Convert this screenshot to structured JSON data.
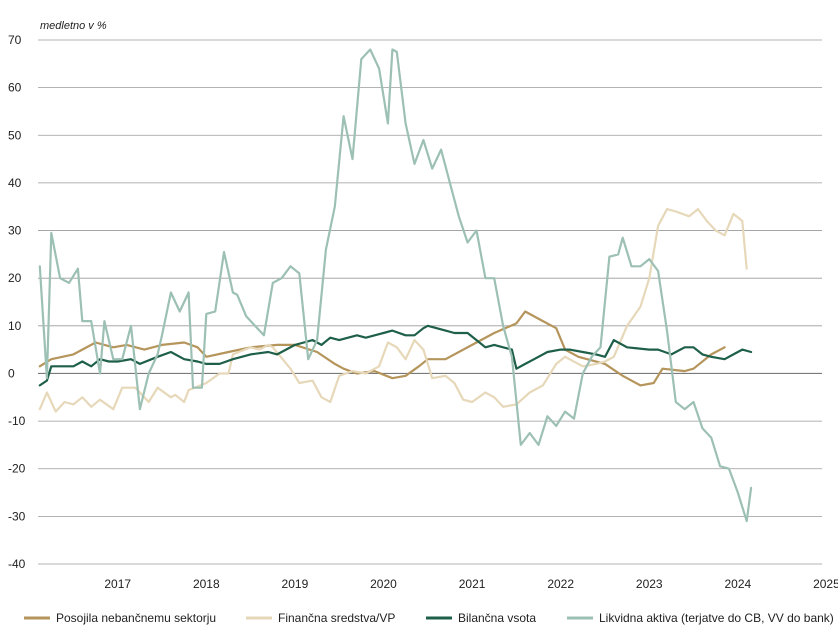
{
  "chart_data": {
    "type": "line",
    "unit_label": "medletno v %",
    "ylim": [
      -40,
      70
    ],
    "y_ticks": [
      70,
      60,
      50,
      40,
      30,
      20,
      10,
      0,
      -10,
      -20,
      -30,
      -40
    ],
    "y_tick_labels": [
      "70",
      "60",
      "50",
      "40",
      "30",
      "20",
      "10",
      "0",
      "-10",
      "-20",
      "-30",
      "-40"
    ],
    "x_start": 2016.6,
    "x_end": 2025.45,
    "x_ticks": [
      2017,
      2018,
      2019,
      2020,
      2021,
      2022,
      2023,
      2024,
      2025
    ],
    "x_tick_labels": [
      "2017",
      "2018",
      "2019",
      "2020",
      "2021",
      "2022",
      "2023",
      "2024",
      "2025"
    ],
    "grid": true,
    "legend_position": "bottom",
    "series": [
      {
        "name": "Posojila nebančnemu sektorju",
        "color": "#b5955b",
        "width": 2.2,
        "x": [
          2016.62,
          2016.75,
          2017.0,
          2017.25,
          2017.45,
          2017.6,
          2017.8,
          2018.0,
          2018.25,
          2018.4,
          2018.5,
          2018.75,
          2019.0,
          2019.3,
          2019.5,
          2019.75,
          2019.95,
          2020.05,
          2020.2,
          2020.4,
          2020.6,
          2020.75,
          2020.9,
          2021.0,
          2021.2,
          2021.5,
          2021.75,
          2022.0,
          2022.1,
          2022.3,
          2022.45,
          2022.55,
          2022.7,
          2022.8,
          2023.0,
          2023.2,
          2023.4,
          2023.55,
          2023.65,
          2023.9,
          2024.0,
          2024.2,
          2024.35
        ],
        "y": [
          1.5,
          3,
          4,
          6.5,
          5.5,
          6,
          5,
          6,
          6.5,
          5.5,
          3.5,
          4.5,
          5.5,
          6,
          6,
          4.5,
          2,
          1,
          0,
          0.5,
          -1,
          -0.5,
          1.5,
          3,
          3,
          6,
          8.5,
          10.5,
          13,
          11,
          9.5,
          5,
          3.5,
          3,
          2,
          -0.5,
          -2.5,
          -2,
          1,
          0.5,
          1,
          4,
          5.5
        ]
      },
      {
        "name": "Finančna sredstva/VP",
        "color": "#e6d8b9",
        "width": 2.2,
        "x": [
          2016.62,
          2016.7,
          2016.8,
          2016.9,
          2017.0,
          2017.1,
          2017.2,
          2017.3,
          2017.45,
          2017.55,
          2017.7,
          2017.85,
          2017.95,
          2018.1,
          2018.15,
          2018.25,
          2018.3,
          2018.5,
          2018.65,
          2018.75,
          2018.8,
          2019.0,
          2019.1,
          2019.2,
          2019.25,
          2019.45,
          2019.55,
          2019.7,
          2019.8,
          2019.9,
          2020.0,
          2020.15,
          2020.3,
          2020.45,
          2020.55,
          2020.65,
          2020.75,
          2020.85,
          2020.95,
          2021.05,
          2021.2,
          2021.3,
          2021.4,
          2021.5,
          2021.65,
          2021.75,
          2021.85,
          2022.0,
          2022.15,
          2022.3,
          2022.45,
          2022.55,
          2022.75,
          2022.9,
          2023.0,
          2023.1,
          2023.25,
          2023.4,
          2023.5,
          2023.6,
          2023.7,
          2023.8,
          2023.95,
          2024.05,
          2024.15,
          2024.25,
          2024.35,
          2024.45,
          2024.55,
          2024.6
        ],
        "y": [
          -7.5,
          -4,
          -8,
          -6,
          -6.5,
          -5,
          -7,
          -5.5,
          -7.5,
          -3,
          -3,
          -6,
          -3,
          -5,
          -4.5,
          -6,
          -3.5,
          -2,
          0,
          0,
          4,
          5.5,
          5,
          6,
          5.5,
          1,
          -2,
          -1.5,
          -5,
          -6,
          -0.5,
          0.5,
          0,
          1.5,
          6.5,
          5.5,
          3,
          7,
          5,
          -1,
          -0.5,
          -2,
          -5.5,
          -6,
          -4,
          -5,
          -7,
          -6.5,
          -4,
          -2.5,
          2,
          3.5,
          1.5,
          2,
          2.5,
          3.5,
          10,
          14,
          20,
          31,
          34.5,
          34,
          33,
          34.5,
          32,
          30,
          29,
          33.5,
          32,
          22
        ]
      },
      {
        "name": "Bilančna vsota",
        "color": "#1e5f4a",
        "width": 2.2,
        "x": [
          2016.62,
          2016.7,
          2016.75,
          2016.9,
          2017.0,
          2017.1,
          2017.2,
          2017.3,
          2017.4,
          2017.5,
          2017.65,
          2017.75,
          2017.95,
          2018.1,
          2018.25,
          2018.4,
          2018.5,
          2018.65,
          2018.8,
          2019.0,
          2019.2,
          2019.3,
          2019.5,
          2019.6,
          2019.7,
          2019.8,
          2019.9,
          2020.0,
          2020.2,
          2020.3,
          2020.5,
          2020.6,
          2020.75,
          2020.85,
          2020.95,
          2021.0,
          2021.2,
          2021.3,
          2021.45,
          2021.55,
          2021.65,
          2021.75,
          2021.85,
          2021.95,
          2022.0,
          2022.1,
          2022.2,
          2022.35,
          2022.5,
          2022.6,
          2022.75,
          2022.9,
          2023.0,
          2023.1,
          2023.25,
          2023.5,
          2023.6,
          2023.75,
          2023.9,
          2024.0,
          2024.1,
          2024.2,
          2024.35,
          2024.45,
          2024.55,
          2024.65
        ],
        "y": [
          -2.5,
          -1.5,
          1.5,
          1.5,
          1.5,
          2.5,
          1.5,
          3,
          2.5,
          2.5,
          3,
          2,
          3.5,
          4.5,
          3,
          2.5,
          2,
          2,
          3,
          4,
          4.5,
          4,
          6,
          6.5,
          7,
          6,
          7.5,
          7,
          8,
          7.5,
          8.5,
          9,
          8,
          8,
          9.5,
          10,
          9,
          8.5,
          8.5,
          7,
          5.5,
          6,
          5.5,
          5,
          1,
          2,
          3,
          4.5,
          5,
          5,
          4.5,
          4,
          3.5,
          7,
          5.5,
          5,
          5,
          4,
          5.5,
          5.5,
          4,
          3.5,
          3,
          4,
          5,
          4.5
        ]
      },
      {
        "name": "Likvidna aktiva (terjatve do CB, VV do bank)",
        "color": "#9dc0b4",
        "width": 2.2,
        "x": [
          2016.62,
          2016.7,
          2016.75,
          2016.85,
          2016.95,
          2017.05,
          2017.1,
          2017.2,
          2017.3,
          2017.35,
          2017.45,
          2017.55,
          2017.65,
          2017.75,
          2017.85,
          2017.95,
          2018.0,
          2018.1,
          2018.2,
          2018.3,
          2018.35,
          2018.45,
          2018.5,
          2018.6,
          2018.7,
          2018.8,
          2018.85,
          2018.95,
          2019.05,
          2019.15,
          2019.25,
          2019.35,
          2019.45,
          2019.55,
          2019.65,
          2019.75,
          2019.85,
          2019.95,
          2020.05,
          2020.15,
          2020.25,
          2020.35,
          2020.45,
          2020.55,
          2020.6,
          2020.65,
          2020.75,
          2020.85,
          2020.95,
          2021.05,
          2021.15,
          2021.25,
          2021.35,
          2021.45,
          2021.55,
          2021.65,
          2021.75,
          2021.85,
          2021.95,
          2022.05,
          2022.15,
          2022.25,
          2022.35,
          2022.45,
          2022.55,
          2022.65,
          2022.75,
          2022.85,
          2022.95,
          2023.05,
          2023.15,
          2023.2,
          2023.3,
          2023.4,
          2023.5,
          2023.6,
          2023.7,
          2023.8,
          2023.9,
          2024.0,
          2024.1,
          2024.2,
          2024.3,
          2024.4,
          2024.5,
          2024.6,
          2024.65
        ],
        "y": [
          22.5,
          -1,
          29.5,
          20,
          19,
          22,
          11,
          11,
          0,
          11,
          3,
          3,
          10,
          -7.5,
          0,
          4,
          8,
          17,
          13,
          17,
          -3,
          -3,
          12.5,
          13,
          25.5,
          17,
          16.5,
          12,
          10,
          8,
          19,
          20,
          22.5,
          21,
          3,
          7,
          26,
          35,
          54,
          45,
          66,
          68,
          64,
          52.5,
          68,
          67.5,
          52.5,
          44,
          49,
          43,
          47,
          40,
          33,
          27.5,
          30,
          20,
          20,
          10,
          3.5,
          -15,
          -12.5,
          -15,
          -9,
          -11,
          -8,
          -9.5,
          0,
          3.5,
          5.5,
          24.5,
          25,
          28.5,
          22.5,
          22.5,
          24,
          21.5,
          9,
          -6,
          -7.5,
          -6,
          -11.5,
          -13.5,
          -19.5,
          -20,
          -25,
          -31,
          -24
        ]
      }
    ]
  }
}
